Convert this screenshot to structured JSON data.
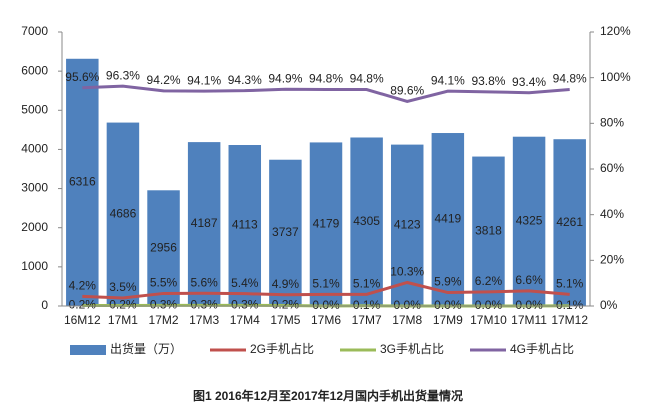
{
  "chart_data": {
    "type": "bar",
    "title": "图1  2016年12月至2017年12月国内手机出货量情况",
    "categories": [
      "16M12",
      "17M1",
      "17M2",
      "17M3",
      "17M4",
      "17M5",
      "17M6",
      "17M7",
      "17M8",
      "17M9",
      "17M10",
      "17M11",
      "17M12"
    ],
    "series": [
      {
        "name": "出货量（万）",
        "type": "bar",
        "color": "#4f81bd",
        "values": [
          6316,
          4686,
          2956,
          4187,
          4113,
          3737,
          4179,
          4305,
          4123,
          4419,
          3818,
          4325,
          4261
        ]
      },
      {
        "name": "2G手机占比",
        "type": "line",
        "axis": "y2",
        "color": "#c0504d",
        "values": [
          4.2,
          3.5,
          5.5,
          5.6,
          5.4,
          4.9,
          5.1,
          5.1,
          10.3,
          5.9,
          6.2,
          6.6,
          5.1
        ],
        "value_labels": [
          "4.2%",
          "3.5%",
          "5.5%",
          "5.6%",
          "5.4%",
          "4.9%",
          "5.1%",
          "5.1%",
          "10.3%",
          "5.9%",
          "6.2%",
          "6.6%",
          "5.1%"
        ]
      },
      {
        "name": "3G手机占比",
        "type": "line",
        "axis": "y2",
        "color": "#9bbb59",
        "values": [
          0.2,
          0.2,
          0.3,
          0.3,
          0.3,
          0.2,
          0,
          0.1,
          0,
          0,
          0,
          0,
          0.1
        ],
        "value_labels": [
          "0.2%",
          "0.2%",
          "0.3%",
          "0.3%",
          "0.3%",
          "0.2%",
          "0.0%",
          "0.1%",
          "0.0%",
          "0.0%",
          "0.0%",
          "0.0%",
          "0.1%"
        ]
      },
      {
        "name": "4G手机占比",
        "type": "line",
        "axis": "y2",
        "color": "#8064a2",
        "values": [
          95.6,
          96.3,
          94.2,
          94.1,
          94.3,
          94.9,
          94.8,
          94.8,
          89.6,
          94.1,
          93.8,
          93.4,
          94.8
        ],
        "value_labels": [
          "95.6%",
          "96.3%",
          "94.2%",
          "94.1%",
          "94.3%",
          "94.9%",
          "94.8%",
          "94.8%",
          "89.6%",
          "94.1%",
          "93.8%",
          "93.4%",
          "94.8%"
        ]
      }
    ],
    "ylim": [
      0,
      7000
    ],
    "yticks": [
      0,
      1000,
      2000,
      3000,
      4000,
      5000,
      6000,
      7000
    ],
    "y2lim": [
      0,
      120
    ],
    "y2ticks": [
      {
        "value": 0,
        "label": "0%"
      },
      {
        "value": 20,
        "label": "20%"
      },
      {
        "value": 40,
        "label": "40%"
      },
      {
        "value": 60,
        "label": "60%"
      },
      {
        "value": 80,
        "label": "80%"
      },
      {
        "value": 100,
        "label": "100%"
      },
      {
        "value": 120,
        "label": "120%"
      }
    ],
    "grid": false,
    "legend": "bottom"
  }
}
